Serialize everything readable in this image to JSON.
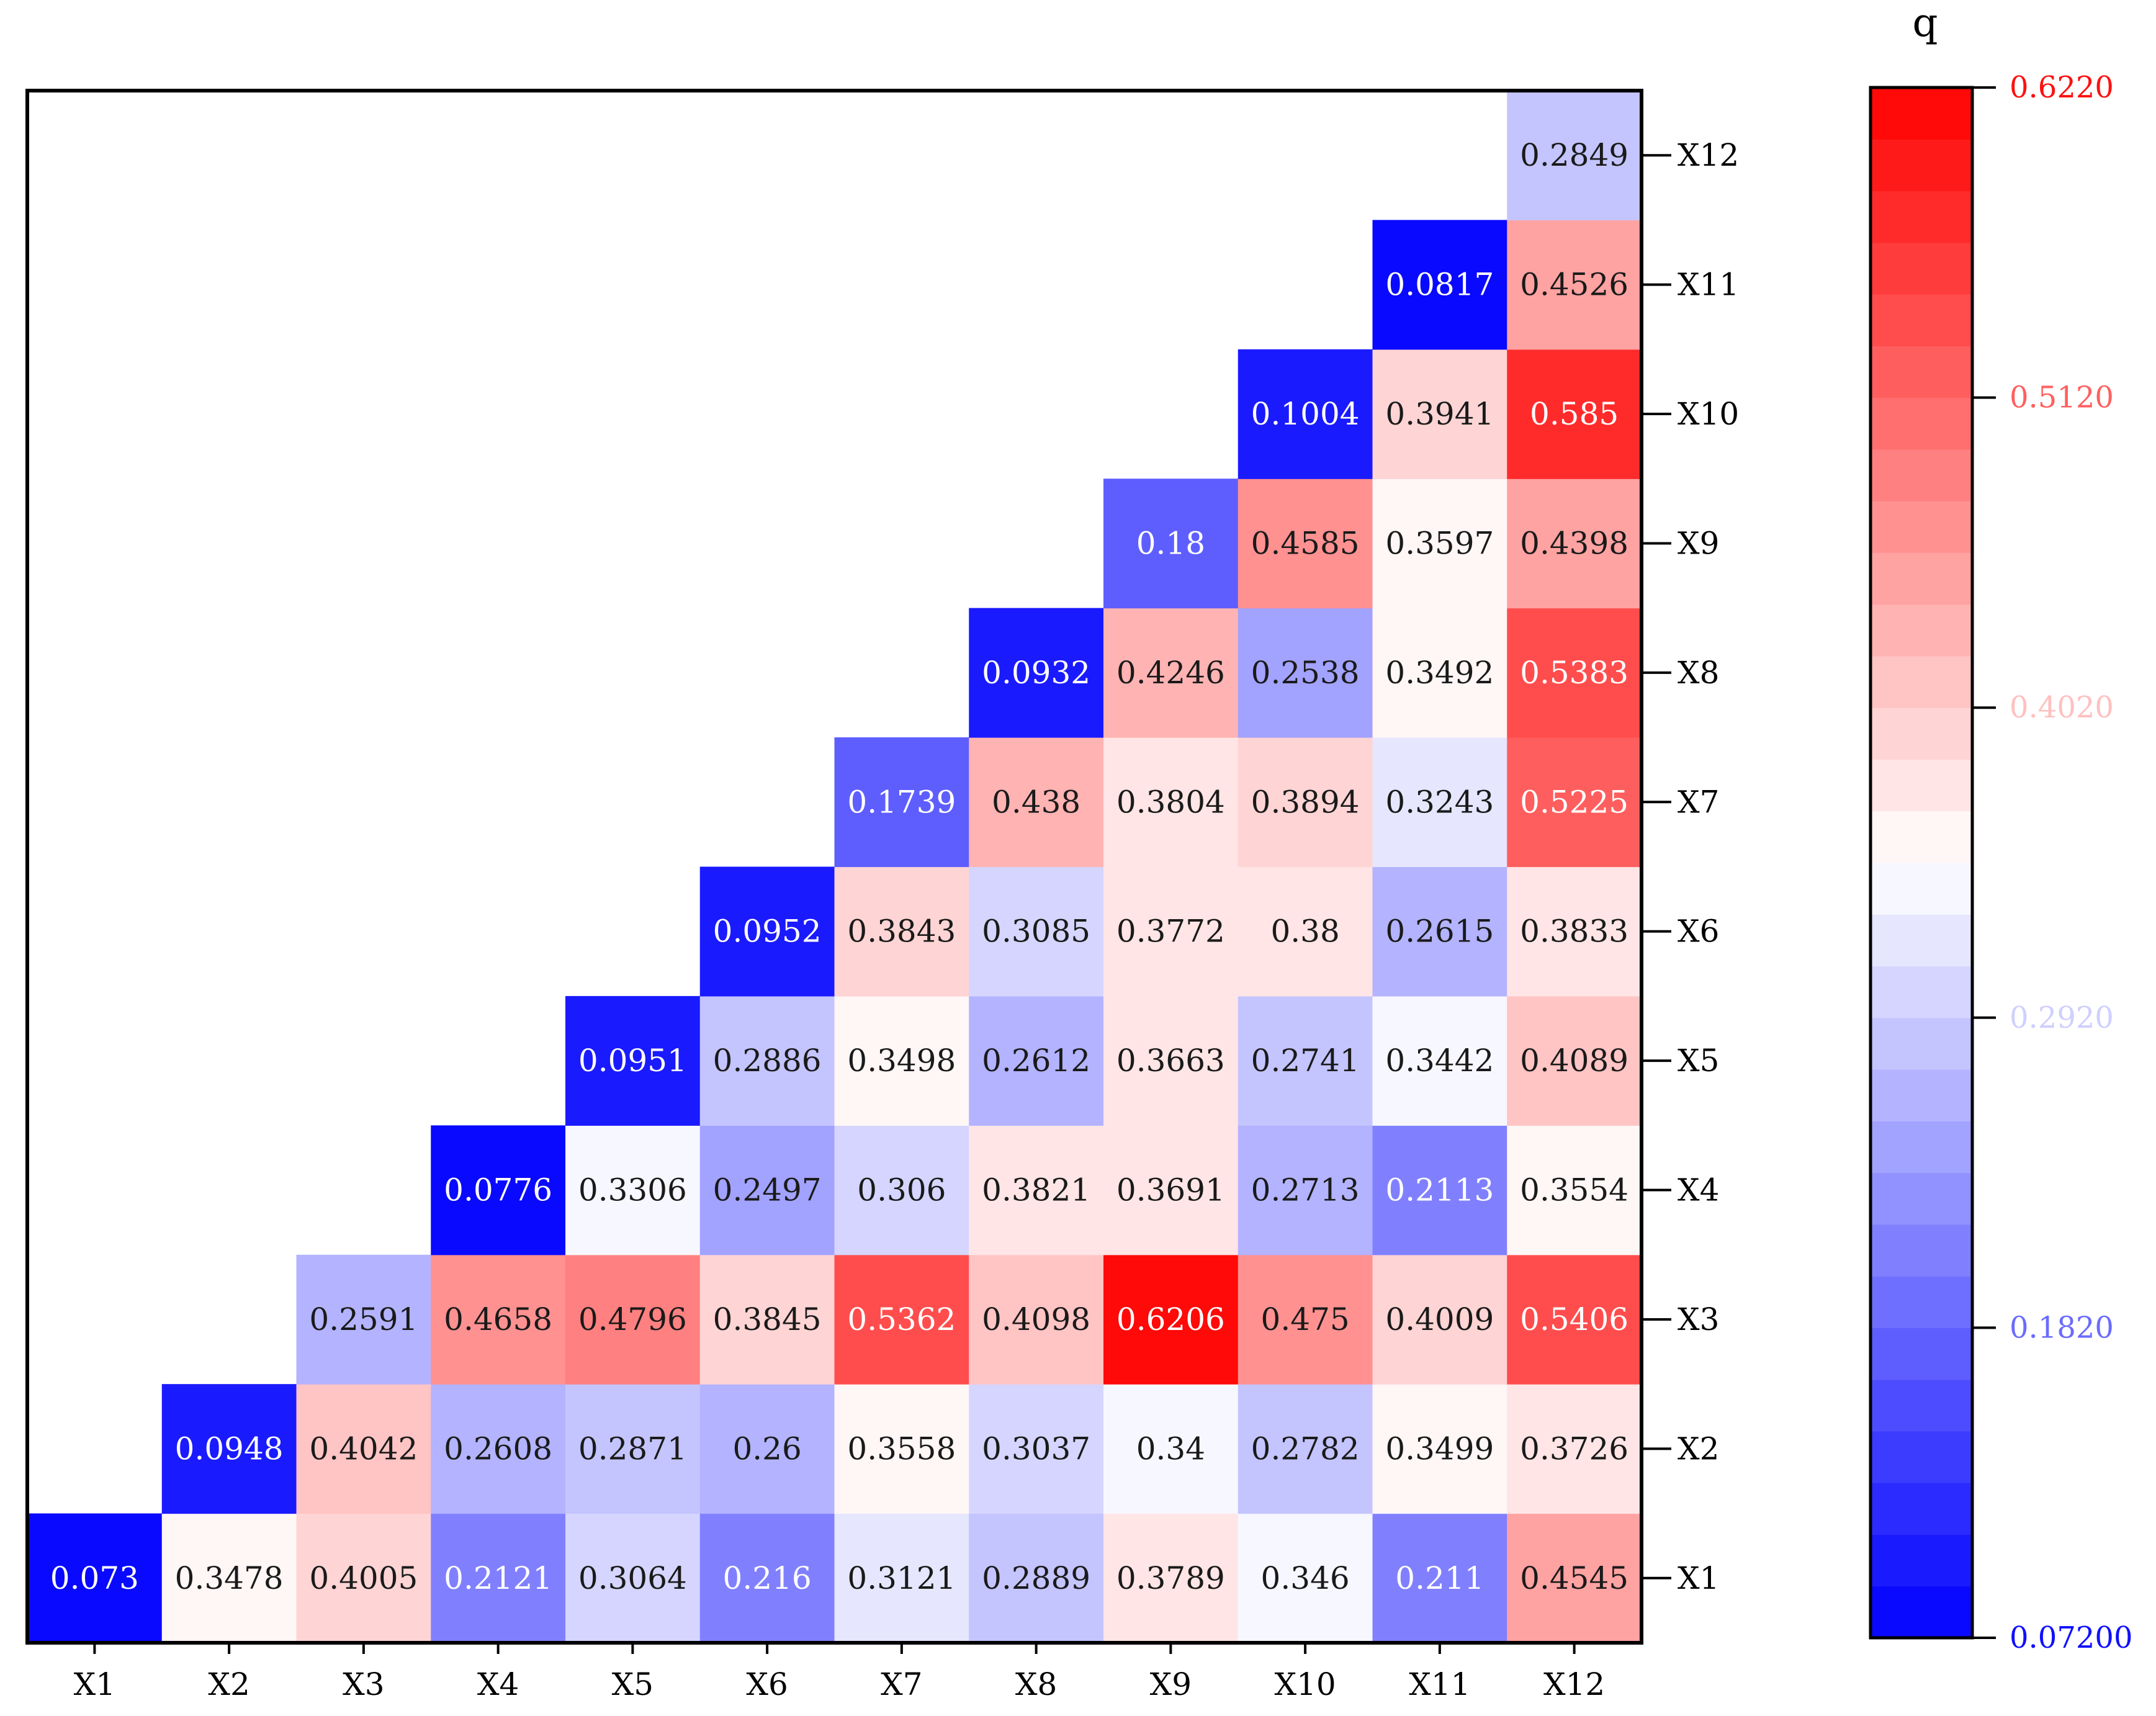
{
  "chart_data": {
    "type": "heatmap",
    "title": "",
    "xlabel": "",
    "ylabel": "",
    "categories": [
      "X1",
      "X2",
      "X3",
      "X4",
      "X5",
      "X6",
      "X7",
      "X8",
      "X9",
      "X10",
      "X11",
      "X12"
    ],
    "matrix": [
      [
        0.073,
        0.3478,
        0.4005,
        0.2121,
        0.3064,
        0.216,
        0.3121,
        0.2889,
        0.3789,
        0.346,
        0.211,
        0.4545
      ],
      [
        null,
        0.0948,
        0.4042,
        0.2608,
        0.2871,
        0.26,
        0.3558,
        0.3037,
        0.34,
        0.2782,
        0.3499,
        0.3726
      ],
      [
        null,
        null,
        0.2591,
        0.4658,
        0.4796,
        0.3845,
        0.5362,
        0.4098,
        0.6206,
        0.475,
        0.4009,
        0.5406
      ],
      [
        null,
        null,
        null,
        0.0776,
        0.3306,
        0.2497,
        0.306,
        0.3821,
        0.3691,
        0.2713,
        0.2113,
        0.3554
      ],
      [
        null,
        null,
        null,
        null,
        0.0951,
        0.2886,
        0.3498,
        0.2612,
        0.3663,
        0.2741,
        0.3442,
        0.4089
      ],
      [
        null,
        null,
        null,
        null,
        null,
        0.0952,
        0.3843,
        0.3085,
        0.3772,
        0.38,
        0.2615,
        0.3833
      ],
      [
        null,
        null,
        null,
        null,
        null,
        null,
        0.1739,
        0.438,
        0.3804,
        0.3894,
        0.3243,
        0.5225
      ],
      [
        null,
        null,
        null,
        null,
        null,
        null,
        null,
        0.0932,
        0.4246,
        0.2538,
        0.3492,
        0.5383
      ],
      [
        null,
        null,
        null,
        null,
        null,
        null,
        null,
        null,
        0.18,
        0.4585,
        0.3597,
        0.4398
      ],
      [
        null,
        null,
        null,
        null,
        null,
        null,
        null,
        null,
        null,
        0.1004,
        0.3941,
        0.585
      ],
      [
        null,
        null,
        null,
        null,
        null,
        null,
        null,
        null,
        null,
        null,
        0.0817,
        0.4526
      ],
      [
        null,
        null,
        null,
        null,
        null,
        null,
        null,
        null,
        null,
        null,
        null,
        0.2849
      ]
    ],
    "cell_labels": [
      [
        "0.073",
        "0.3478",
        "0.4005",
        "0.2121",
        "0.3064",
        "0.216",
        "0.3121",
        "0.2889",
        "0.3789",
        "0.346",
        "0.211",
        "0.4545"
      ],
      [
        null,
        "0.0948",
        "0.4042",
        "0.2608",
        "0.2871",
        "0.26",
        "0.3558",
        "0.3037",
        "0.34",
        "0.2782",
        "0.3499",
        "0.3726"
      ],
      [
        null,
        null,
        "0.2591",
        "0.4658",
        "0.4796",
        "0.3845",
        "0.5362",
        "0.4098",
        "0.6206",
        "0.475",
        "0.4009",
        "0.5406"
      ],
      [
        null,
        null,
        null,
        "0.0776",
        "0.3306",
        "0.2497",
        "0.306",
        "0.3821",
        "0.3691",
        "0.2713",
        "0.2113",
        "0.3554"
      ],
      [
        null,
        null,
        null,
        null,
        "0.0951",
        "0.2886",
        "0.3498",
        "0.2612",
        "0.3663",
        "0.2741",
        "0.3442",
        "0.4089"
      ],
      [
        null,
        null,
        null,
        null,
        null,
        "0.0952",
        "0.3843",
        "0.3085",
        "0.3772",
        "0.38",
        "0.2615",
        "0.3833"
      ],
      [
        null,
        null,
        null,
        null,
        null,
        null,
        "0.1739",
        "0.438",
        "0.3804",
        "0.3894",
        "0.3243",
        "0.5225"
      ],
      [
        null,
        null,
        null,
        null,
        null,
        null,
        null,
        "0.0932",
        "0.4246",
        "0.2538",
        "0.3492",
        "0.5383"
      ],
      [
        null,
        null,
        null,
        null,
        null,
        null,
        null,
        null,
        "0.18",
        "0.4585",
        "0.3597",
        "0.4398"
      ],
      [
        null,
        null,
        null,
        null,
        null,
        null,
        null,
        null,
        null,
        "0.1004",
        "0.3941",
        "0.585"
      ],
      [
        null,
        null,
        null,
        null,
        null,
        null,
        null,
        null,
        null,
        null,
        "0.0817",
        "0.4526"
      ],
      [
        null,
        null,
        null,
        null,
        null,
        null,
        null,
        null,
        null,
        null,
        null,
        "0.2849"
      ]
    ],
    "colorbar": {
      "title": "q",
      "min": 0.072,
      "max": 0.622,
      "ticks": [
        "0.07200",
        "0.1820",
        "0.2920",
        "0.4020",
        "0.5120",
        "0.6220"
      ],
      "tick_values": [
        0.072,
        0.182,
        0.292,
        0.402,
        0.512,
        0.622
      ],
      "tick_colors": [
        "#1010ff",
        "#6b6bff",
        "#cfcfff",
        "#ffc0c0",
        "#ff6060",
        "#ff1010"
      ],
      "bands": 30,
      "color_low": "#0000ff",
      "color_mid": "#ffffff",
      "color_high": "#ff0000"
    }
  }
}
